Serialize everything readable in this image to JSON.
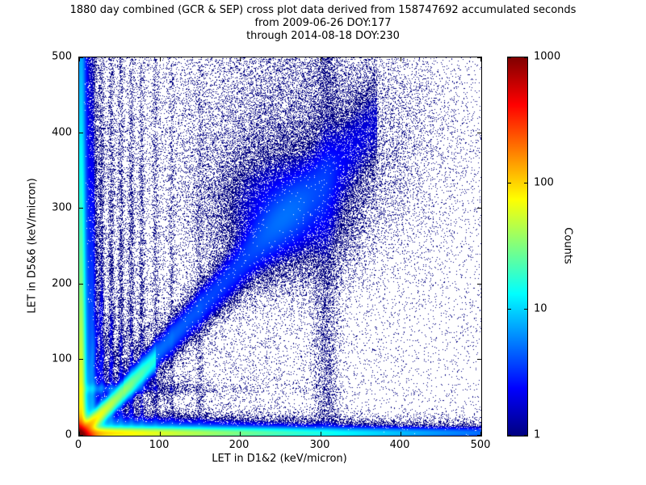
{
  "chart_data": {
    "type": "heatmap",
    "title": "1880 day combined (GCR & SEP) cross plot data derived from 158747692 accumulated seconds",
    "subtitle1": "from 2009-06-26 DOY:177",
    "subtitle2": "through 2014-08-18 DOY:230",
    "xlabel": "LET in D1&2 (keV/micron)",
    "ylabel": "LET in D5&6 (keV/micron)",
    "xlim": [
      0,
      500
    ],
    "ylim": [
      0,
      500
    ],
    "x_ticks": [
      0,
      100,
      200,
      300,
      400,
      500
    ],
    "y_ticks": [
      0,
      100,
      200,
      300,
      400,
      500
    ],
    "grid": false,
    "colorbar": {
      "label": "Counts",
      "scale": "log",
      "range": [
        1,
        1000
      ],
      "ticks": [
        1,
        10,
        100,
        1000
      ],
      "colormap": "jet",
      "stops": [
        {
          "pos": 0,
          "color": "#000080"
        },
        {
          "pos": 0.125,
          "color": "#0000ff"
        },
        {
          "pos": 0.375,
          "color": "#00ffff"
        },
        {
          "pos": 0.625,
          "color": "#ffff00"
        },
        {
          "pos": 0.875,
          "color": "#ff0000"
        },
        {
          "pos": 1,
          "color": "#800000"
        }
      ]
    },
    "density_features": [
      {
        "type": "corner",
        "amp": 3000,
        "sx": 6,
        "sy": 6
      },
      {
        "type": "ridge",
        "slope": 1.05,
        "x_from": 0,
        "x_to": 95,
        "amp": 130,
        "width": 4,
        "grow": 0.02,
        "decay": 38
      },
      {
        "type": "hband",
        "y": 3,
        "width": 4,
        "amp": 110,
        "x_decay": 140
      },
      {
        "type": "hband",
        "y": 9,
        "width": 9,
        "amp": 9,
        "x_decay": 160
      },
      {
        "type": "hband",
        "y": 5,
        "width": 5,
        "amp": 2.5,
        "x_decay": 1200
      },
      {
        "type": "vband",
        "x": 2,
        "width": 3,
        "amp": 90,
        "y_decay": 170
      },
      {
        "type": "vband",
        "x": 8,
        "width": 8,
        "amp": 7,
        "y_decay": 320
      },
      {
        "type": "vband",
        "x": 4,
        "width": 4,
        "amp": 2,
        "y_decay": 2500
      },
      {
        "type": "hband",
        "y": 62,
        "width": 4,
        "amp": 5,
        "x_decay": 55
      },
      {
        "type": "ridge",
        "slope": 1.12,
        "x_from": 55,
        "x_to": 370,
        "amp": 6,
        "width": 6,
        "grow": 0.06,
        "decay": 220
      },
      {
        "type": "blob",
        "x": 255,
        "y": 295,
        "r": 45,
        "amp": 2.5
      },
      {
        "type": "blob",
        "x": 285,
        "y": 400,
        "r": 90,
        "amp": 0.45
      },
      {
        "type": "vband",
        "x": 307,
        "width": 9,
        "amp": 0.55,
        "y_decay": 10000
      },
      {
        "type": "vband",
        "x": 17,
        "width": 2,
        "amp": 2.6,
        "y_decay": 300
      },
      {
        "type": "vband",
        "x": 28,
        "width": 2,
        "amp": 2.0,
        "y_decay": 300
      },
      {
        "type": "vband",
        "x": 40,
        "width": 2,
        "amp": 1.8,
        "y_decay": 320
      },
      {
        "type": "vband",
        "x": 52,
        "width": 2,
        "amp": 1.6,
        "y_decay": 320
      },
      {
        "type": "vband",
        "x": 65,
        "width": 2,
        "amp": 1.5,
        "y_decay": 340
      },
      {
        "type": "vband",
        "x": 78,
        "width": 2,
        "amp": 1.2,
        "y_decay": 340
      },
      {
        "type": "vband",
        "x": 95,
        "width": 2,
        "amp": 0.9,
        "y_decay": 360
      },
      {
        "type": "vband",
        "x": 115,
        "width": 2,
        "amp": 0.7,
        "y_decay": 360
      },
      {
        "type": "vband",
        "x": 150,
        "width": 2.5,
        "amp": 0.55,
        "y_decay": 380
      },
      {
        "type": "ridge",
        "slope": 1.6,
        "x_from": 0,
        "x_to": 90,
        "amp": 2.5,
        "width": 2.5,
        "grow": 0.02,
        "decay": 45
      },
      {
        "type": "ridge",
        "slope": 2.3,
        "x_from": 0,
        "x_to": 65,
        "amp": 2.2,
        "width": 2.5,
        "grow": 0.02,
        "decay": 40
      },
      {
        "type": "ridge",
        "slope": 3.5,
        "x_from": 0,
        "x_to": 45,
        "amp": 2.0,
        "width": 2.5,
        "grow": 0.02,
        "decay": 35
      },
      {
        "type": "ridge",
        "slope": 6,
        "x_from": 0,
        "x_to": 30,
        "amp": 1.8,
        "width": 2.5,
        "grow": 0.02,
        "decay": 30
      },
      {
        "type": "ridge",
        "slope": 0.75,
        "x_from": 0,
        "x_to": 110,
        "amp": 2.2,
        "width": 2.5,
        "grow": 0.03,
        "decay": 50
      },
      {
        "type": "ridge",
        "slope": 0.5,
        "x_from": 0,
        "x_to": 140,
        "amp": 1.6,
        "width": 2.5,
        "grow": 0.03,
        "decay": 60
      },
      {
        "type": "bg",
        "amp": 0.28,
        "x_decay": 140,
        "y_decay": 420
      },
      {
        "type": "bg",
        "amp": 0.045,
        "x_decay": 700,
        "y_decay": 700
      },
      {
        "type": "bg",
        "amp": 0.012,
        "x_decay": 100000,
        "y_decay": 100000
      }
    ]
  }
}
